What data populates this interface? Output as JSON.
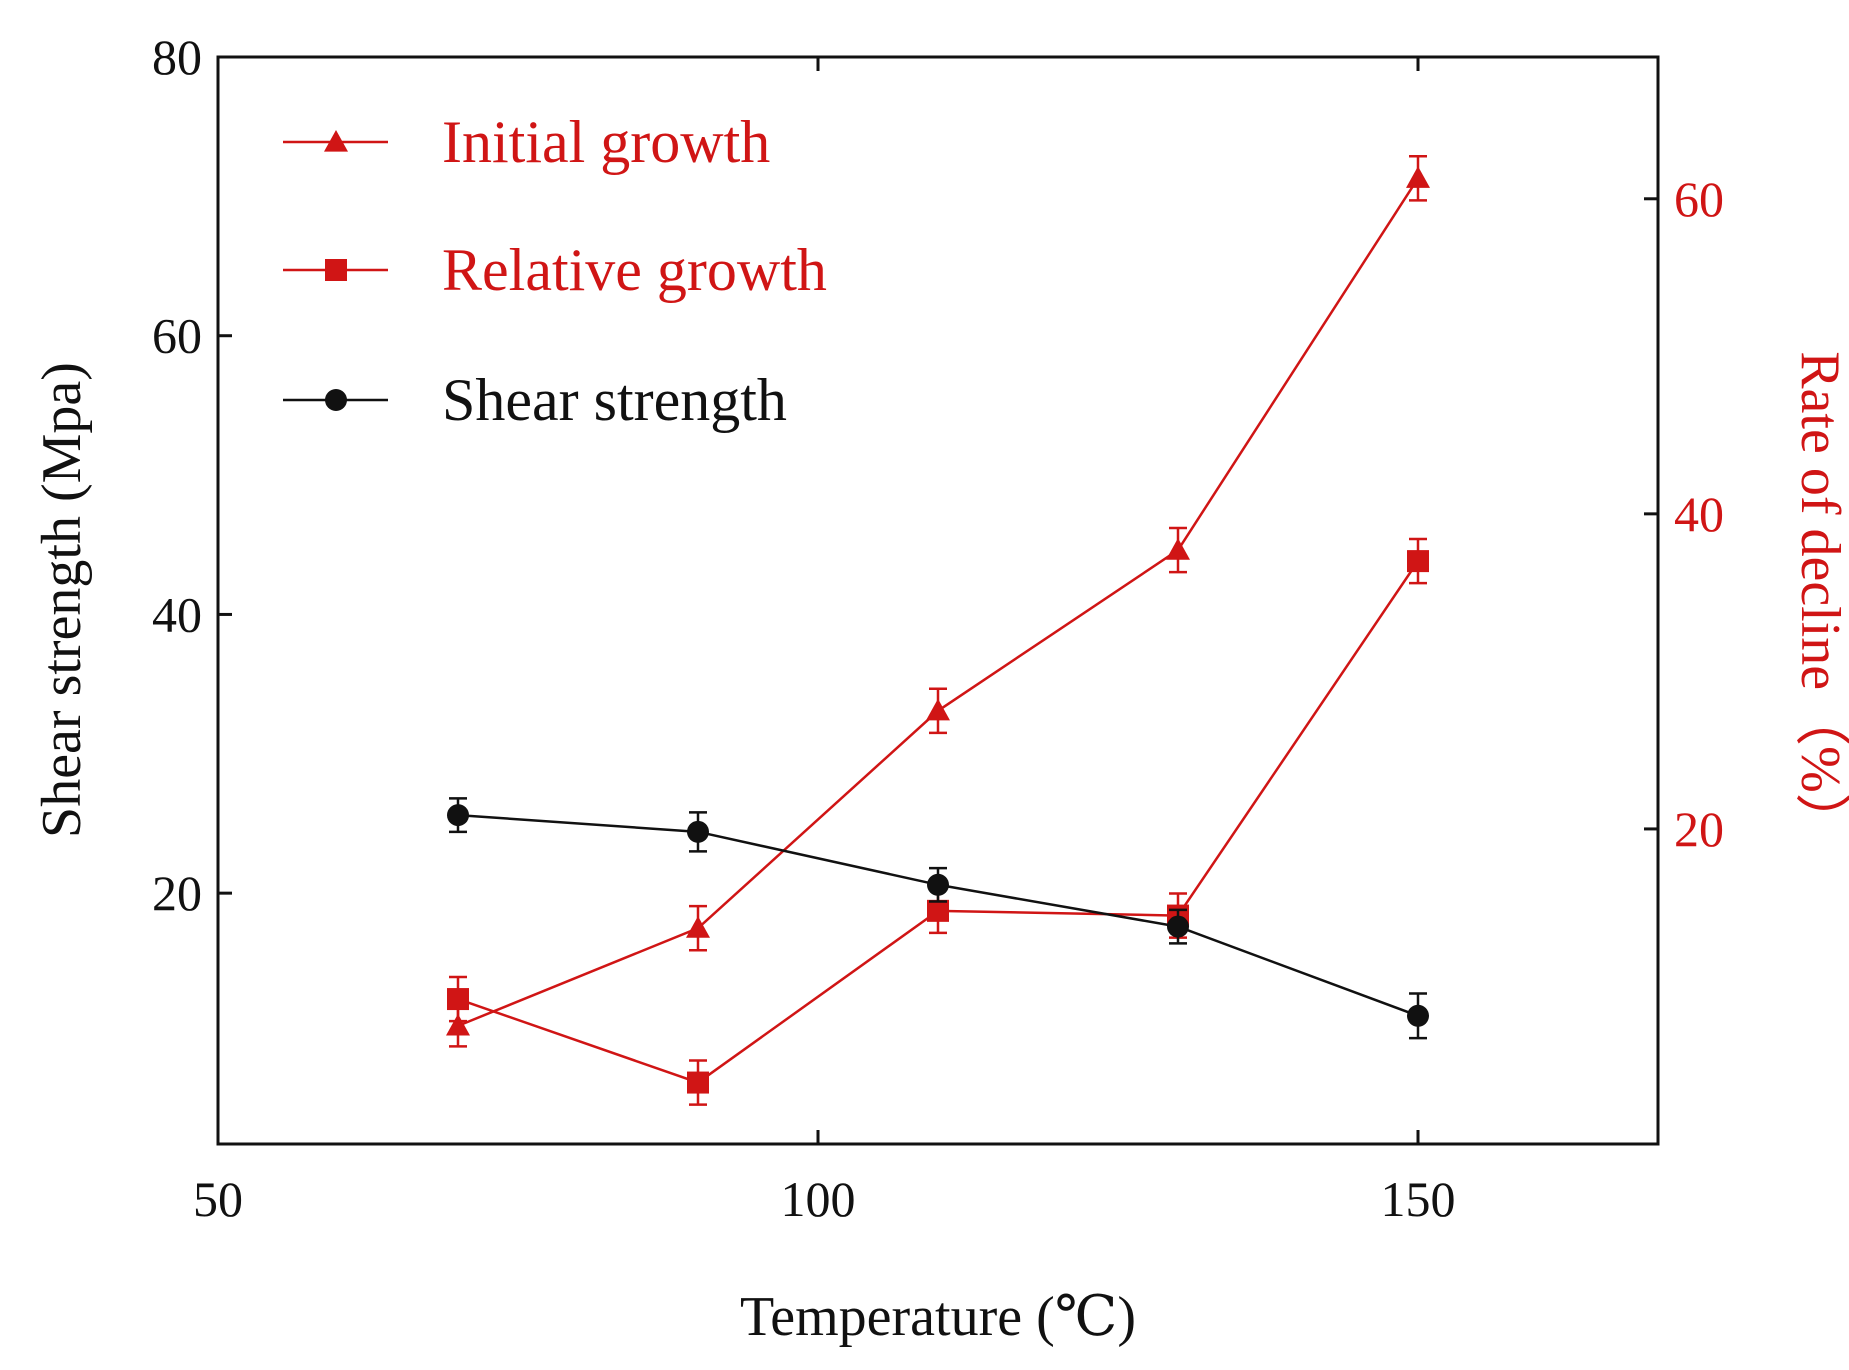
{
  "chart_data": {
    "type": "line",
    "title": "",
    "xlabel": "Temperature (℃)",
    "ylabel_left": "Shear strength (Mpa)",
    "ylabel_right": "Rate of decline（%）",
    "xlim": [
      50,
      170
    ],
    "ylim_left": [
      2,
      80
    ],
    "ylim_right": [
      0,
      69
    ],
    "x_ticks": [
      50,
      100,
      150
    ],
    "y_ticks_left": [
      20,
      40,
      60,
      80
    ],
    "y_ticks_right": [
      20,
      40,
      60
    ],
    "legend_position": "top-left",
    "colors": {
      "red": "#d01515",
      "black": "#111111",
      "axis": "#111111"
    },
    "series": [
      {
        "name": "Initial growth",
        "axis": "right",
        "marker": "triangle",
        "color": "#d01515",
        "x": [
          70,
          90,
          110,
          130,
          150
        ],
        "y": [
          7.5,
          13.7,
          27.5,
          37.7,
          61.3
        ],
        "err": [
          1.3,
          1.4,
          1.4,
          1.4,
          1.4
        ]
      },
      {
        "name": "Relative growth",
        "axis": "right",
        "marker": "square",
        "color": "#d01515",
        "x": [
          70,
          90,
          110,
          130,
          150
        ],
        "y": [
          9.2,
          3.9,
          14.8,
          14.5,
          37.0
        ],
        "err": [
          1.4,
          1.4,
          1.4,
          1.4,
          1.4
        ]
      },
      {
        "name": "Shear strength",
        "axis": "left",
        "marker": "circle",
        "color": "#111111",
        "x": [
          70,
          90,
          110,
          130,
          150
        ],
        "y": [
          25.6,
          24.4,
          20.6,
          17.6,
          11.2
        ],
        "err": [
          1.2,
          1.4,
          1.2,
          1.2,
          1.6
        ]
      }
    ]
  }
}
